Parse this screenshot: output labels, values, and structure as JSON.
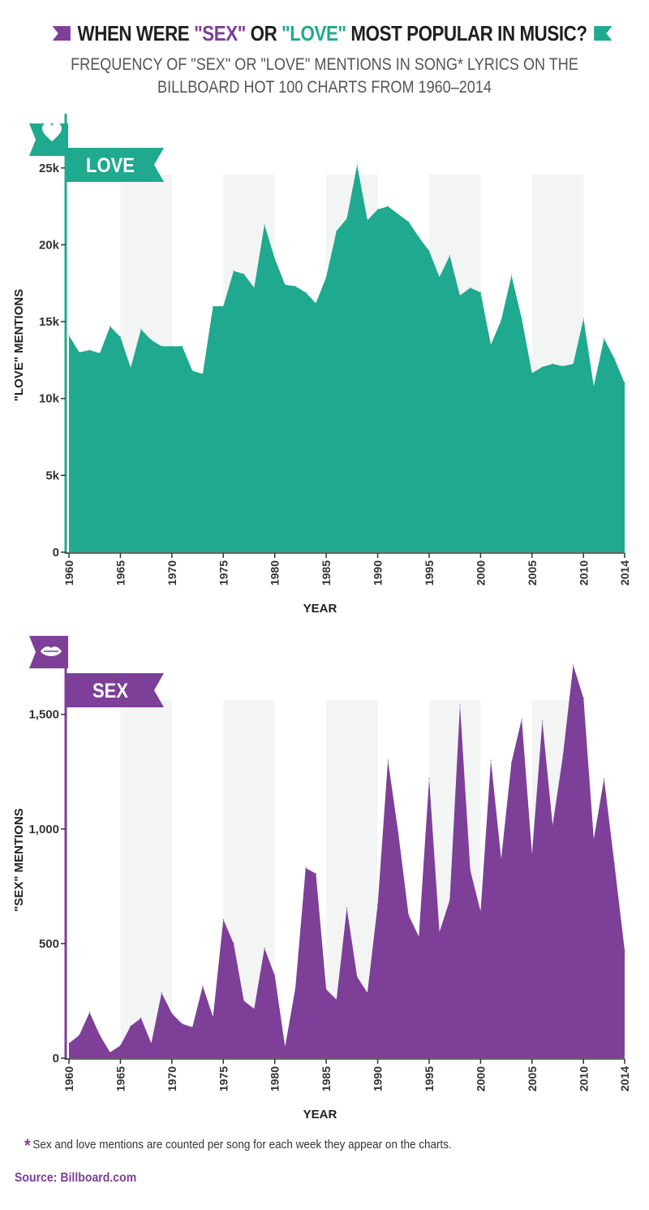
{
  "header": {
    "title_prefix": "WHEN WERE ",
    "title_sex": "\"SEX\"",
    "title_mid": " OR ",
    "title_love": "\"LOVE\"",
    "title_suffix": " MOST POPULAR IN MUSIC?",
    "subtitle_line1": "FREQUENCY OF \"SEX\" OR \"LOVE\" MENTIONS IN SONG* LYRICS ON THE",
    "subtitle_line2": "BILLBOARD HOT 100 CHARTS FROM 1960–2014"
  },
  "footnote": {
    "star": "*",
    "text": "Sex and love mentions are counted per song for each week they appear on the charts."
  },
  "source": "Source: Billboard.com",
  "colors": {
    "love": "#1fa98e",
    "sex": "#7d3f98",
    "band": "#f3f4f4"
  },
  "chart_data": [
    {
      "type": "area",
      "banner": "LOVE",
      "icon": "heart-icon",
      "ylabel": "\"LOVE\" MENTIONS",
      "xlabel": "YEAR",
      "ylim": [
        0,
        28000
      ],
      "yticks": [
        0,
        5000,
        10000,
        15000,
        20000,
        25000
      ],
      "ytick_labels": [
        "0",
        "5k",
        "10k",
        "15k",
        "20k",
        "25k"
      ],
      "xticks": [
        1960,
        1965,
        1970,
        1975,
        1980,
        1985,
        1990,
        1995,
        2000,
        2005,
        2010,
        2014
      ],
      "x": [
        1960,
        1961,
        1962,
        1963,
        1964,
        1965,
        1966,
        1967,
        1968,
        1969,
        1970,
        1971,
        1972,
        1973,
        1974,
        1975,
        1976,
        1977,
        1978,
        1979,
        1980,
        1981,
        1982,
        1983,
        1984,
        1985,
        1986,
        1987,
        1988,
        1989,
        1990,
        1991,
        1992,
        1993,
        1994,
        1995,
        1996,
        1997,
        1998,
        1999,
        2000,
        2001,
        2002,
        2003,
        2004,
        2005,
        2006,
        2007,
        2008,
        2009,
        2010,
        2011,
        2012,
        2013,
        2014
      ],
      "values": [
        14100,
        13000,
        13150,
        12950,
        14700,
        14000,
        12000,
        14500,
        13800,
        13400,
        13400,
        13400,
        11800,
        11600,
        16000,
        16000,
        18300,
        18100,
        17200,
        21300,
        19100,
        17400,
        17300,
        16900,
        16200,
        17900,
        20900,
        21700,
        25200,
        21600,
        22300,
        22500,
        22000,
        21500,
        20500,
        19600,
        17900,
        19300,
        16700,
        17200,
        16900,
        13500,
        15100,
        18000,
        15200,
        11650,
        12050,
        12250,
        12100,
        12250,
        15200,
        10800,
        13900,
        12600,
        11000
      ]
    },
    {
      "type": "area",
      "banner": "SEX",
      "icon": "lips-icon",
      "ylabel": "\"SEX\" MENTIONS",
      "xlabel": "YEAR",
      "ylim": [
        0,
        1800
      ],
      "yticks": [
        0,
        500,
        1000,
        1500
      ],
      "ytick_labels": [
        "0",
        "500",
        "1,000",
        "1,500"
      ],
      "xticks": [
        1960,
        1965,
        1970,
        1975,
        1980,
        1985,
        1990,
        1995,
        2000,
        2005,
        2010,
        2014
      ],
      "x": [
        1960,
        1961,
        1962,
        1963,
        1964,
        1965,
        1966,
        1967,
        1968,
        1969,
        1970,
        1971,
        1972,
        1973,
        1974,
        1975,
        1976,
        1977,
        1978,
        1979,
        1980,
        1981,
        1982,
        1983,
        1984,
        1985,
        1986,
        1987,
        1988,
        1989,
        1990,
        1991,
        1992,
        1993,
        1994,
        1995,
        1996,
        1997,
        1998,
        1999,
        2000,
        2001,
        2002,
        2003,
        2004,
        2005,
        2006,
        2007,
        2008,
        2009,
        2010,
        2011,
        2012,
        2013,
        2014
      ],
      "values": [
        65,
        100,
        200,
        100,
        25,
        55,
        140,
        175,
        65,
        285,
        195,
        150,
        135,
        315,
        180,
        605,
        500,
        250,
        215,
        480,
        360,
        50,
        305,
        830,
        805,
        300,
        255,
        655,
        355,
        285,
        670,
        1300,
        985,
        625,
        530,
        1220,
        550,
        690,
        1540,
        820,
        640,
        1300,
        870,
        1290,
        1480,
        890,
        1470,
        1015,
        1320,
        1715,
        1570,
        955,
        1220,
        850,
        470
      ]
    }
  ]
}
